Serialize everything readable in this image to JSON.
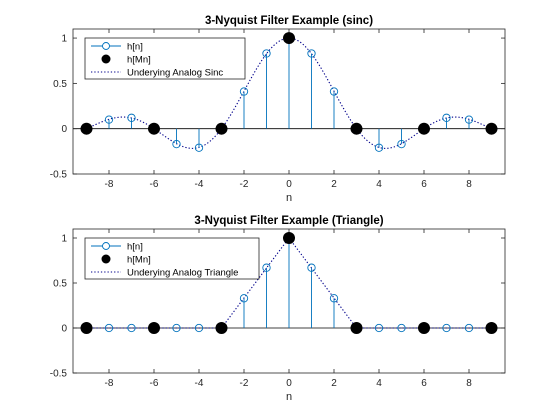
{
  "chart_data": [
    {
      "type": "stem",
      "title": "3-Nyquist Filter Example (sinc)",
      "xlabel": "n",
      "ylabel": "",
      "xlim": [
        -9.6,
        9.6
      ],
      "ylim": [
        -0.5,
        1.1
      ],
      "xticks": [
        -8,
        -6,
        -4,
        -2,
        0,
        2,
        4,
        6,
        8
      ],
      "yticks": [
        -0.5,
        0,
        0.5,
        1
      ],
      "ytick_labels": [
        "-0.5",
        "0",
        "0.5",
        "1"
      ],
      "legend": [
        "h[n]",
        "h[Mn]",
        "Underying Analog Sinc"
      ],
      "legend_position": "top-left",
      "n": [
        -9,
        -8,
        -7,
        -6,
        -5,
        -4,
        -3,
        -2,
        -1,
        0,
        1,
        2,
        3,
        4,
        5,
        6,
        7,
        8,
        9
      ],
      "h": [
        0,
        0.1,
        0.12,
        0,
        -0.17,
        -0.21,
        0,
        0.41,
        0.83,
        1,
        0.83,
        0.41,
        0,
        -0.21,
        -0.17,
        0,
        0.12,
        0.1,
        0
      ],
      "downsampled_n": [
        -9,
        -6,
        -3,
        0,
        3,
        6,
        9
      ],
      "downsampled_h": [
        0,
        0,
        0,
        1,
        0,
        0,
        0
      ],
      "analog": "sinc",
      "period": 3
    },
    {
      "type": "stem",
      "title": "3-Nyquist Filter Example (Triangle)",
      "xlabel": "n",
      "ylabel": "",
      "xlim": [
        -9.6,
        9.6
      ],
      "ylim": [
        -0.5,
        1.1
      ],
      "xticks": [
        -8,
        -6,
        -4,
        -2,
        0,
        2,
        4,
        6,
        8
      ],
      "yticks": [
        -0.5,
        0,
        0.5,
        1
      ],
      "ytick_labels": [
        "-0.5",
        "0",
        "0.5",
        "1"
      ],
      "legend": [
        "h[n]",
        "h[Mn]",
        "Underying Analog Triangle"
      ],
      "legend_position": "top-left",
      "n": [
        -9,
        -8,
        -7,
        -6,
        -5,
        -4,
        -3,
        -2,
        -1,
        0,
        1,
        2,
        3,
        4,
        5,
        6,
        7,
        8,
        9
      ],
      "h": [
        0,
        0,
        0,
        0,
        0,
        0,
        0,
        0.33,
        0.67,
        1,
        0.67,
        0.33,
        0,
        0,
        0,
        0,
        0,
        0,
        0
      ],
      "downsampled_n": [
        -9,
        -6,
        -3,
        0,
        3,
        6,
        9
      ],
      "downsampled_h": [
        0,
        0,
        0,
        1,
        0,
        0,
        0
      ],
      "analog": "triangle",
      "period": 3
    }
  ],
  "colors": {
    "stem": "#0072BD",
    "analog": "#00008B",
    "downsampled": "#000000",
    "axes": "#262626"
  }
}
